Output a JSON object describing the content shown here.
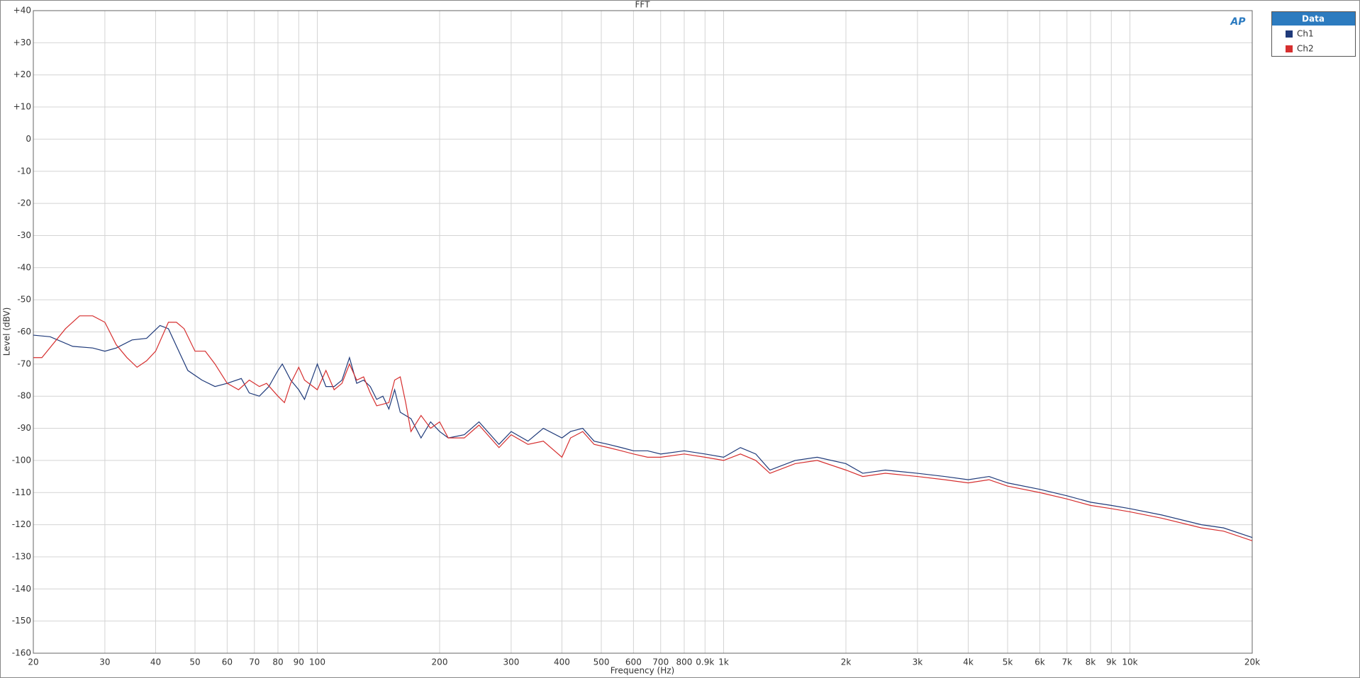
{
  "chart_data": {
    "type": "line",
    "title": "FFT",
    "logo": "AP",
    "x_label": "Frequency (Hz)",
    "y_label": "Level (dBV)",
    "legend_title": "Data",
    "x_scale": "log",
    "grid": true,
    "legend_position": "outside-top-right",
    "xlim": [
      20,
      20000
    ],
    "ylim": [
      -160,
      40
    ],
    "xticks": [
      20,
      30,
      40,
      50,
      60,
      70,
      80,
      90,
      100,
      200,
      300,
      400,
      500,
      600,
      700,
      800,
      {
        "value": 900,
        "label": "0.9k"
      },
      {
        "value": 1000,
        "label": "1k"
      },
      {
        "value": 2000,
        "label": "2k"
      },
      {
        "value": 3000,
        "label": "3k"
      },
      {
        "value": 4000,
        "label": "4k"
      },
      {
        "value": 5000,
        "label": "5k"
      },
      {
        "value": 6000,
        "label": "6k"
      },
      {
        "value": 7000,
        "label": "7k"
      },
      {
        "value": 8000,
        "label": "8k"
      },
      {
        "value": 9000,
        "label": "9k"
      },
      {
        "value": 10000,
        "label": "10k"
      },
      {
        "value": 20000,
        "label": "20k"
      }
    ],
    "yticks": [
      {
        "value": 40,
        "label": "+40"
      },
      {
        "value": 30,
        "label": "+30"
      },
      {
        "value": 20,
        "label": "+20"
      },
      {
        "value": 10,
        "label": "+10"
      },
      0,
      -10,
      -20,
      -30,
      -40,
      -50,
      -60,
      -70,
      -80,
      -90,
      -100,
      -110,
      -120,
      -130,
      -140,
      -150,
      -160
    ],
    "series": [
      {
        "name": "Ch1",
        "color": "#1f3a7a",
        "x": [
          20,
          22,
          25,
          28,
          30,
          32,
          35,
          38,
          41,
          43,
          46,
          48,
          52,
          56,
          60,
          65,
          68,
          72,
          76,
          80,
          82,
          86,
          90,
          93,
          100,
          105,
          110,
          115,
          120,
          125,
          130,
          135,
          140,
          145,
          150,
          155,
          160,
          170,
          180,
          190,
          200,
          210,
          230,
          250,
          280,
          300,
          330,
          360,
          400,
          420,
          450,
          480,
          520,
          560,
          600,
          650,
          700,
          800,
          900,
          1000,
          1100,
          1200,
          1300,
          1500,
          1700,
          2000,
          2200,
          2500,
          3000,
          3500,
          4000,
          4500,
          5000,
          6000,
          7000,
          8000,
          9000,
          10000,
          12000,
          15000,
          17000,
          20000
        ],
        "values": [
          -61,
          -61.5,
          -64.5,
          -65,
          -66,
          -65,
          -62.5,
          -62,
          -58,
          -59,
          -67,
          -72,
          -75,
          -77,
          -76,
          -74.5,
          -79,
          -80,
          -77,
          -72,
          -70,
          -75,
          -78,
          -81,
          -70,
          -77,
          -77,
          -75,
          -68,
          -76,
          -75,
          -77,
          -81,
          -80,
          -84,
          -78,
          -85,
          -87,
          -93,
          -88,
          -91,
          -93,
          -92,
          -88,
          -95,
          -91,
          -94,
          -90,
          -93,
          -91,
          -90,
          -94,
          -95,
          -96,
          -97,
          -97,
          -98,
          -97,
          -98,
          -99,
          -96,
          -98,
          -103,
          -100,
          -99,
          -101,
          -104,
          -103,
          -104,
          -105,
          -106,
          -105,
          -107,
          -109,
          -111,
          -113,
          -114,
          -115,
          -117,
          -120,
          -121,
          -124
        ]
      },
      {
        "name": "Ch2",
        "color": "#d62f2f",
        "x": [
          20,
          21,
          24,
          26,
          28,
          30,
          32,
          34,
          36,
          38,
          40,
          43,
          45,
          47,
          50,
          53,
          56,
          60,
          64,
          68,
          72,
          75,
          80,
          83,
          86,
          90,
          93,
          100,
          105,
          110,
          115,
          120,
          125,
          130,
          135,
          140,
          150,
          155,
          160,
          165,
          170,
          180,
          190,
          200,
          210,
          230,
          250,
          280,
          300,
          330,
          360,
          400,
          420,
          450,
          480,
          520,
          560,
          600,
          650,
          700,
          800,
          900,
          1000,
          1100,
          1200,
          1300,
          1500,
          1700,
          2000,
          2200,
          2500,
          3000,
          3500,
          4000,
          4500,
          5000,
          6000,
          7000,
          8000,
          9000,
          10000,
          12000,
          15000,
          17000,
          20000
        ],
        "values": [
          -68,
          -68,
          -59,
          -55,
          -55,
          -57,
          -64,
          -68,
          -71,
          -69,
          -66,
          -57,
          -57,
          -59,
          -66,
          -66,
          -70,
          -76,
          -78,
          -75,
          -77,
          -76,
          -80,
          -82,
          -76,
          -71,
          -75,
          -78,
          -72,
          -78,
          -76,
          -70,
          -75,
          -74,
          -79,
          -83,
          -82,
          -75,
          -74,
          -82,
          -91,
          -86,
          -90,
          -88,
          -93,
          -93,
          -89,
          -96,
          -92,
          -95,
          -94,
          -99,
          -93,
          -91,
          -95,
          -96,
          -97,
          -98,
          -99,
          -99,
          -98,
          -99,
          -100,
          -98,
          -100,
          -104,
          -101,
          -100,
          -103,
          -105,
          -104,
          -105,
          -106,
          -107,
          -106,
          -108,
          -110,
          -112,
          -114,
          -115,
          -116,
          -118,
          -121,
          -122,
          -125
        ]
      }
    ]
  }
}
